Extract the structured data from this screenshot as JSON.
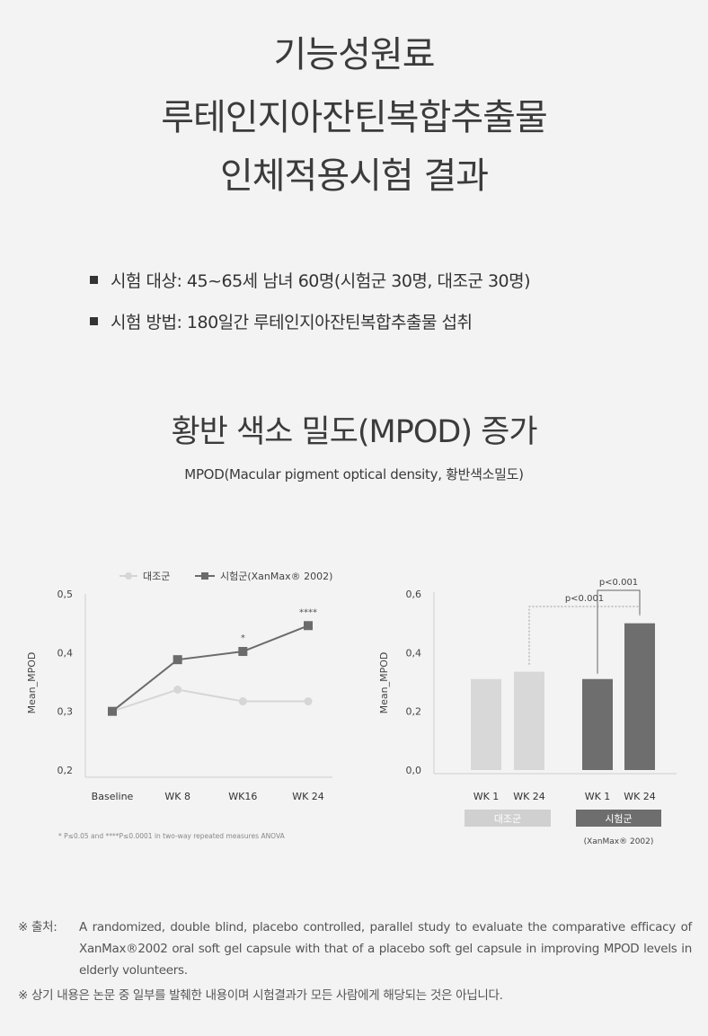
{
  "header": {
    "title_lines": [
      "기능성원료",
      "루테인지아잔틴복합추출물",
      "인체적용시험 결과"
    ]
  },
  "study": {
    "bullets": [
      "시험 대상: 45~65세 남녀 60명(시험군 30명, 대조군 30명)",
      "시험 방법: 180일간 루테인지아잔틴복합추출물 섭취"
    ]
  },
  "section": {
    "title": "황반 색소 밀도(MPOD) 증가",
    "subtitle": "MPOD(Macular pigment optical density, 황반색소밀도)"
  },
  "chart_data": [
    {
      "type": "line",
      "ylabel": "Mean_MPOD",
      "ylim": [
        0.2,
        0.5
      ],
      "yticks": [
        "0,2",
        "0,3",
        "0,4",
        "0,5"
      ],
      "categories": [
        "Baseline",
        "WK 8",
        "WK16",
        "WK 24"
      ],
      "series": [
        {
          "name": "대조군",
          "values": [
            0.3,
            0.337,
            0.317,
            0.317
          ],
          "color": "#d6d6d6"
        },
        {
          "name": "시험군(XanMax® 2002)",
          "values": [
            0.3,
            0.388,
            0.402,
            0.446
          ],
          "color": "#6b6b6b"
        }
      ],
      "annotations": [
        {
          "category": "WK16",
          "text": "*"
        },
        {
          "category": "WK 24",
          "text": "****"
        }
      ],
      "legend": "top",
      "grid": false,
      "footnote": "* P≤0.05 and ****P≤0.0001 in two-way repeated measures ANOVA"
    },
    {
      "type": "bar",
      "ylabel": "Mean_MPOD",
      "ylim": [
        0.0,
        0.6
      ],
      "yticks": [
        "0,0",
        "0,2",
        "0,4",
        "0,6"
      ],
      "categories": [
        "WK 1",
        "WK 24",
        "WK 1",
        "WK 24"
      ],
      "values": [
        0.31,
        0.335,
        0.31,
        0.5
      ],
      "colors": [
        "#d8d8d8",
        "#d8d8d8",
        "#6e6e6e",
        "#6e6e6e"
      ],
      "groups": [
        {
          "name": "대조군",
          "color": "#d0d0d0"
        },
        {
          "name": "시험군",
          "color": "#6e6e6e",
          "note": "(XanMax® 2002)"
        }
      ],
      "significance": [
        {
          "text": "p<0.001",
          "style": "dashed"
        },
        {
          "text": "p<0.001",
          "style": "solid"
        }
      ],
      "grid": false
    }
  ],
  "footer": {
    "source_label": "※ 출처:",
    "source_text": "A randomized, double blind, placebo controlled, parallel study to evaluate the comparative efficacy of XanMax®2002 oral soft gel capsule with that of a placebo soft gel capsule in improving MPOD levels in elderly volunteers.",
    "disclaimer": "※ 상기 내용은 논문 중 일부를 발췌한 내용이며 시험결과가 모든 사람에게 해당되는 것은 아닙니다."
  }
}
